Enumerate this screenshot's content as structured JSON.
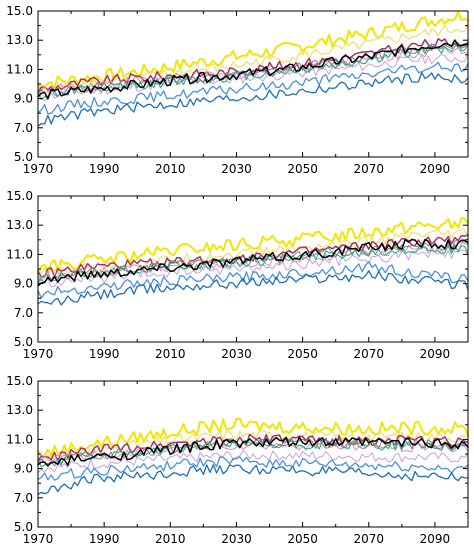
{
  "chart_data": [
    {
      "type": "line",
      "ylim": [
        5.0,
        15.0
      ],
      "xlim": [
        1970,
        2100
      ],
      "x_ticks": [
        1970,
        1990,
        2010,
        2030,
        2050,
        2070,
        2090
      ],
      "x_tick_labels": [
        "1970",
        "1990",
        "2010",
        "2030",
        "2050",
        "2070",
        "2090"
      ],
      "y_ticks": [
        5.0,
        7.0,
        9.0,
        11.0,
        13.0,
        15.0
      ],
      "y_tick_labels": [
        "5.0",
        "7.0",
        "9.0",
        "11.0",
        "13.0",
        "15.0"
      ],
      "grid": false,
      "colors": [
        "#f2e600",
        "#f0df6a",
        "#a8306a",
        "#e48ab8",
        "#c9a0dc",
        "#2fb38a",
        "#808080",
        "#000000",
        "#4a90e2",
        "#1f6fb5"
      ],
      "series": [
        {
          "values": [
            10.0,
            10.4,
            10.8,
            11.3,
            11.8,
            12.3,
            12.9,
            13.5,
            14.2,
            14.8
          ]
        },
        {
          "values": [
            9.7,
            10.1,
            10.4,
            10.8,
            11.2,
            11.7,
            12.2,
            12.8,
            13.4,
            13.9
          ]
        },
        {
          "values": [
            9.6,
            10.1,
            10.4,
            10.6,
            10.8,
            11.2,
            11.6,
            12.1,
            12.7,
            12.9
          ]
        },
        {
          "values": [
            9.5,
            9.9,
            10.2,
            10.4,
            10.6,
            10.9,
            11.3,
            11.7,
            12.2,
            12.4
          ]
        },
        {
          "values": [
            9.1,
            9.5,
            9.8,
            10.1,
            10.3,
            10.6,
            10.9,
            11.3,
            11.7,
            11.8
          ]
        },
        {
          "values": [
            9.2,
            9.6,
            9.9,
            10.2,
            10.5,
            10.8,
            11.2,
            11.7,
            12.3,
            12.6
          ]
        },
        {
          "values": [
            9.3,
            9.7,
            10.0,
            10.3,
            10.6,
            10.9,
            11.4,
            11.9,
            12.5,
            12.8
          ]
        },
        {
          "values": [
            9.2,
            9.6,
            9.9,
            10.3,
            10.6,
            10.9,
            11.4,
            11.9,
            12.6,
            13.0
          ]
        },
        {
          "values": [
            8.2,
            8.7,
            9.0,
            9.3,
            9.6,
            9.9,
            10.3,
            10.7,
            11.1,
            11.2
          ]
        },
        {
          "values": [
            7.4,
            8.0,
            8.4,
            8.7,
            9.0,
            9.3,
            9.7,
            10.1,
            10.5,
            10.4
          ]
        }
      ]
    },
    {
      "type": "line",
      "ylim": [
        5.0,
        15.0
      ],
      "xlim": [
        1970,
        2100
      ],
      "x_ticks": [
        1970,
        1990,
        2010,
        2030,
        2050,
        2070,
        2090
      ],
      "x_tick_labels": [
        "1970",
        "1990",
        "2010",
        "2030",
        "2050",
        "2070",
        "2090"
      ],
      "y_ticks": [
        5.0,
        7.0,
        9.0,
        11.0,
        13.0,
        15.0
      ],
      "y_tick_labels": [
        "5.0",
        "7.0",
        "9.0",
        "11.0",
        "13.0",
        "15.0"
      ],
      "grid": false,
      "colors": [
        "#f2e600",
        "#f0df6a",
        "#a8306a",
        "#e48ab8",
        "#c9a0dc",
        "#2fb38a",
        "#808080",
        "#000000",
        "#4a90e2",
        "#1f6fb5"
      ],
      "series": [
        {
          "values": [
            10.0,
            10.5,
            10.9,
            11.3,
            11.6,
            11.9,
            12.2,
            12.6,
            13.0,
            13.1
          ]
        },
        {
          "values": [
            9.7,
            10.1,
            10.4,
            10.7,
            11.0,
            11.3,
            11.6,
            11.9,
            12.3,
            12.4
          ]
        },
        {
          "values": [
            9.6,
            10.1,
            10.3,
            10.5,
            10.7,
            11.0,
            11.3,
            11.6,
            11.9,
            12.0
          ]
        },
        {
          "values": [
            9.5,
            9.8,
            10.0,
            10.2,
            10.4,
            10.6,
            10.9,
            11.2,
            11.4,
            11.5
          ]
        },
        {
          "values": [
            9.0,
            9.3,
            9.5,
            9.8,
            10.0,
            10.2,
            10.5,
            10.7,
            11.0,
            11.0
          ]
        },
        {
          "values": [
            9.3,
            9.7,
            10.0,
            10.2,
            10.4,
            10.7,
            11.0,
            11.2,
            11.4,
            11.3
          ]
        },
        {
          "values": [
            9.3,
            9.7,
            10.0,
            10.3,
            10.5,
            10.8,
            11.1,
            11.4,
            11.6,
            11.6
          ]
        },
        {
          "values": [
            9.2,
            9.6,
            9.9,
            10.2,
            10.5,
            10.8,
            11.1,
            11.5,
            11.8,
            11.7
          ]
        },
        {
          "values": [
            8.3,
            8.7,
            9.0,
            9.2,
            9.4,
            9.6,
            9.9,
            10.2,
            9.6,
            9.3
          ]
        },
        {
          "values": [
            7.5,
            8.1,
            8.5,
            8.8,
            9.0,
            9.2,
            9.4,
            9.6,
            9.2,
            8.9
          ]
        }
      ]
    },
    {
      "type": "line",
      "ylim": [
        5.0,
        15.0
      ],
      "xlim": [
        1970,
        2100
      ],
      "x_ticks": [
        1970,
        1990,
        2010,
        2030,
        2050,
        2070,
        2090
      ],
      "x_tick_labels": [
        "1970",
        "1990",
        "2010",
        "2030",
        "2050",
        "2070",
        "2090"
      ],
      "y_ticks": [
        5.0,
        7.0,
        9.0,
        11.0,
        13.0,
        15.0
      ],
      "y_tick_labels": [
        "5.0",
        "7.0",
        "9.0",
        "11.0",
        "13.0",
        "15.0"
      ],
      "grid": false,
      "colors": [
        "#f2e600",
        "#f0df6a",
        "#a8306a",
        "#e48ab8",
        "#c9a0dc",
        "#2fb38a",
        "#808080",
        "#000000",
        "#4a90e2",
        "#1f6fb5"
      ],
      "series": [
        {
          "values": [
            10.0,
            10.6,
            11.1,
            11.6,
            12.0,
            11.9,
            11.8,
            11.7,
            11.8,
            11.7
          ]
        },
        {
          "values": [
            9.7,
            10.2,
            10.6,
            11.0,
            11.3,
            11.3,
            11.2,
            11.2,
            11.2,
            11.1
          ]
        },
        {
          "values": [
            9.6,
            10.2,
            10.5,
            10.8,
            11.0,
            11.0,
            10.9,
            10.9,
            10.9,
            10.8
          ]
        },
        {
          "values": [
            9.5,
            9.9,
            10.1,
            10.4,
            10.6,
            10.6,
            10.6,
            10.5,
            10.5,
            10.4
          ]
        },
        {
          "values": [
            9.0,
            9.3,
            9.5,
            9.7,
            9.9,
            9.9,
            9.9,
            9.8,
            9.8,
            9.7
          ]
        },
        {
          "values": [
            9.3,
            9.8,
            10.1,
            10.4,
            10.6,
            10.6,
            10.6,
            10.6,
            10.6,
            10.5
          ]
        },
        {
          "values": [
            9.3,
            9.8,
            10.1,
            10.4,
            10.7,
            10.7,
            10.7,
            10.7,
            10.7,
            10.6
          ]
        },
        {
          "values": [
            9.2,
            9.7,
            10.0,
            10.4,
            10.7,
            10.8,
            10.8,
            10.8,
            10.8,
            10.7
          ]
        },
        {
          "values": [
            8.3,
            8.8,
            9.0,
            9.3,
            9.5,
            9.4,
            9.3,
            9.2,
            9.1,
            9.0
          ]
        },
        {
          "values": [
            7.4,
            8.2,
            8.5,
            8.8,
            9.0,
            8.9,
            8.8,
            8.6,
            8.5,
            8.3
          ]
        }
      ]
    }
  ]
}
